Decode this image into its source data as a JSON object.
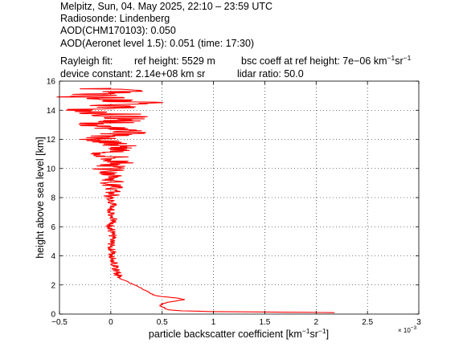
{
  "header": {
    "line1": "Melpitz, Sun, 04. May 2025, 22:10 – 23:59 UTC",
    "line2": "Radiosonde: Lindenberg",
    "line3": "AOD(CHM170103): 0.050",
    "line4": "AOD(Aeronet level 1.5): 0.051   (time: 17:30)",
    "rayleigh_label": "Rayleigh fit:",
    "ref_height": "ref height: 5529 m",
    "bsc_coeff_prefix": "bsc coeff at ref height: 7e−06 km",
    "bsc_coeff_sup1": "−1",
    "bsc_coeff_mid": "sr",
    "bsc_coeff_sup2": "−1",
    "device_constant": "device constant: 2.14e+08 km sr",
    "lidar_ratio": "lidar ratio: 50.0"
  },
  "chart_data": {
    "type": "line",
    "xlabel_prefix": "particle backscatter coefficient [km",
    "xlabel_sup1": "−1",
    "xlabel_mid": "sr",
    "xlabel_sup2": "−1",
    "xlabel_suffix": "]",
    "ylabel": "height above sea level [km]",
    "x_multiplier_base": "× 10",
    "x_multiplier_exp": "−3",
    "xlim": [
      -0.5,
      3
    ],
    "ylim": [
      0,
      16
    ],
    "x_ticks": [
      -0.5,
      0,
      0.5,
      1,
      1.5,
      2,
      2.5,
      3
    ],
    "x_tick_labels": [
      "−0.5",
      "0",
      "0.5",
      "1",
      "1.5",
      "2",
      "2.5",
      "3"
    ],
    "y_ticks": [
      0,
      2,
      4,
      6,
      8,
      10,
      12,
      14,
      16
    ],
    "y_tick_labels": [
      "0",
      "2",
      "4",
      "6",
      "8",
      "10",
      "12",
      "14",
      "16"
    ],
    "grid": true,
    "series": [
      {
        "color": "#ff0000",
        "x_unit_scale": "1e-3",
        "points": [
          [
            2.18,
            0.1
          ],
          [
            1.9,
            0.12
          ],
          [
            1.5,
            0.14
          ],
          [
            1.0,
            0.17
          ],
          [
            0.7,
            0.22
          ],
          [
            0.55,
            0.3
          ],
          [
            0.52,
            0.45
          ],
          [
            0.48,
            0.55
          ],
          [
            0.5,
            0.7
          ],
          [
            0.55,
            0.8
          ],
          [
            0.72,
            1.0
          ],
          [
            0.65,
            1.1
          ],
          [
            0.5,
            1.2
          ],
          [
            0.42,
            1.3
          ],
          [
            0.38,
            1.45
          ],
          [
            0.35,
            1.6
          ],
          [
            0.3,
            1.75
          ],
          [
            0.25,
            1.95
          ],
          [
            0.2,
            2.1
          ],
          [
            0.15,
            2.25
          ],
          [
            0.1,
            2.4
          ],
          [
            0.08,
            2.6
          ],
          [
            0.06,
            2.8
          ],
          [
            0.05,
            3.1
          ],
          [
            0.04,
            3.4
          ],
          [
            0.03,
            3.7
          ],
          [
            0.02,
            4.0
          ],
          [
            0.01,
            4.5
          ],
          [
            0.0,
            5.0
          ],
          [
            0.02,
            5.5
          ],
          [
            -0.01,
            6.0
          ],
          [
            0.03,
            6.5
          ],
          [
            0.0,
            7.0
          ],
          [
            0.02,
            7.5
          ],
          [
            -0.02,
            8.0
          ],
          [
            0.04,
            8.5
          ],
          [
            0.0,
            9.0
          ],
          [
            0.06,
            9.5
          ],
          [
            -0.03,
            10.0
          ],
          [
            0.1,
            10.5
          ],
          [
            -0.05,
            11.0
          ],
          [
            0.12,
            11.5
          ],
          [
            -0.08,
            12.0
          ],
          [
            0.15,
            12.5
          ],
          [
            -0.12,
            13.0
          ],
          [
            0.2,
            13.5
          ],
          [
            -0.2,
            14.0
          ],
          [
            0.25,
            14.5
          ],
          [
            -0.3,
            15.0
          ],
          [
            0.1,
            15.3
          ],
          [
            0.0,
            15.5
          ]
        ]
      }
    ]
  }
}
